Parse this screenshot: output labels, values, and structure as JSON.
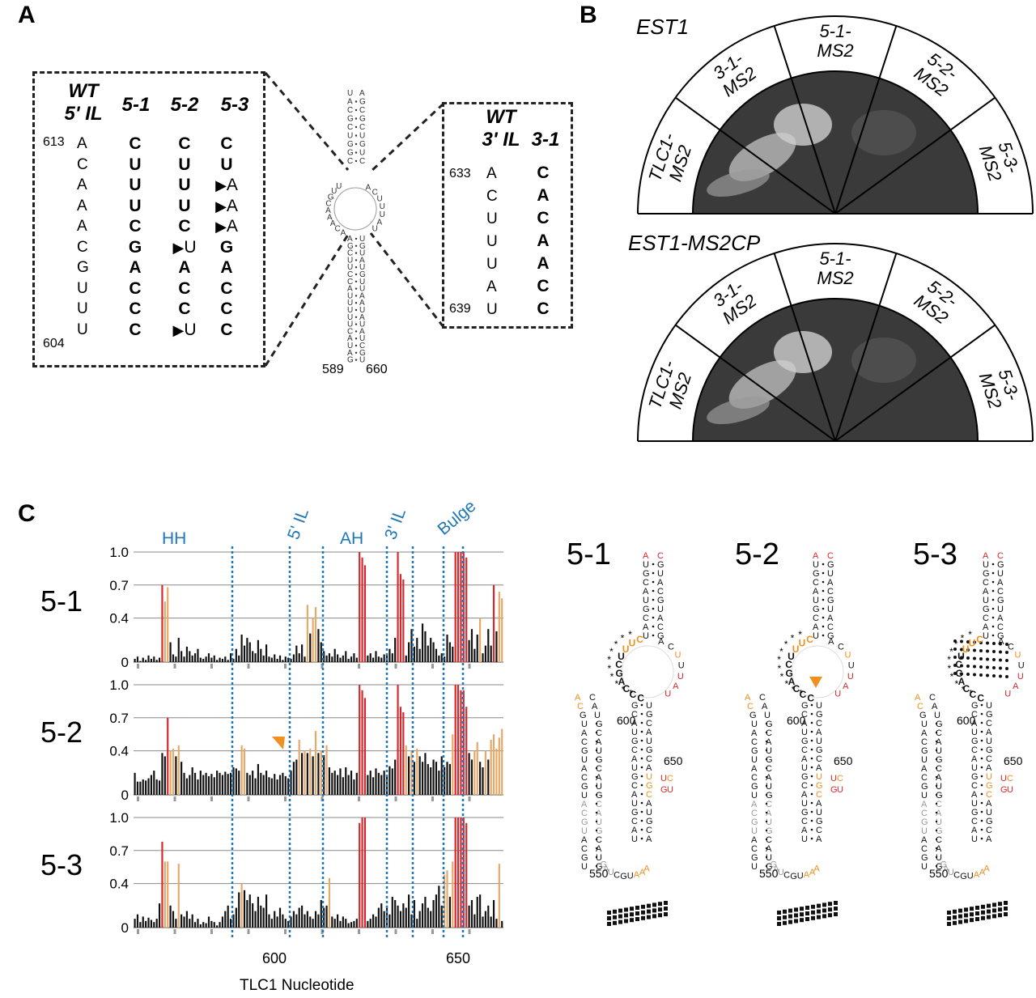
{
  "panels": {
    "a": "A",
    "b": "B",
    "c": "C"
  },
  "panel_a": {
    "left_box": {
      "wt_header": [
        "WT",
        "5' IL"
      ],
      "mutant_headers": [
        "5-1",
        "5-2",
        "5-3"
      ],
      "start_num": "613",
      "end_num": "604",
      "wt_seq": [
        "A",
        "C",
        "A",
        "A",
        "A",
        "C",
        "G",
        "U",
        "U",
        "U"
      ],
      "m51": [
        "C",
        "U",
        "U",
        "U",
        "C",
        "G",
        "A",
        "C",
        "C",
        "C"
      ],
      "m52": [
        "C",
        "U",
        "U",
        "U",
        "C",
        "U",
        "A",
        "C",
        "C",
        "U"
      ],
      "m53": [
        "C",
        "U",
        "A",
        "A",
        "A",
        "G",
        "A",
        "C",
        "C",
        "C"
      ],
      "m52_arrows": [
        5,
        9
      ],
      "m53_arrows": [
        2,
        3,
        4
      ]
    },
    "right_box": {
      "wt_header": [
        "WT",
        "3' IL"
      ],
      "mutant_header": "3-1",
      "start_num": "633",
      "end_num": "639",
      "wt_seq": [
        "A",
        "C",
        "U",
        "U",
        "U",
        "A",
        "U"
      ],
      "m31": [
        "C",
        "A",
        "C",
        "A",
        "A",
        "C",
        "C"
      ]
    },
    "hairpin": {
      "left_num": "589",
      "right_num": "660"
    }
  },
  "panel_b": {
    "plates": [
      {
        "title": "EST1",
        "sectors": [
          "TLC1-\nMS2",
          "3-1-\nMS2",
          "5-1-\nMS2",
          "5-2-\nMS2",
          "5-3-\nMS2"
        ]
      },
      {
        "title": "EST1-MS2CP",
        "sectors": [
          "TLC1-\nMS2",
          "3-1-\nMS2",
          "5-1-\nMS2",
          "5-2-\nMS2",
          "5-3-\nMS2"
        ]
      }
    ]
  },
  "panel_c": {
    "region_labels": [
      "HH",
      "5' IL",
      "AH",
      "3' IL",
      "Bulge"
    ],
    "xlabel": "TLC1 Nucleotide",
    "x_ticks": [
      "600",
      "650"
    ],
    "y_ticks": [
      "0",
      "0.4",
      "0.7",
      "1.0"
    ],
    "colors": {
      "low": "#111111",
      "mid": "#e8a868",
      "high": "#d8282d",
      "divider": "#1f78b4",
      "orange_mark": "#f09020"
    },
    "structure_titles": [
      "5-1",
      "5-2",
      "5-3"
    ],
    "structure_numbers": [
      "600",
      "650",
      "550"
    ]
  },
  "chart_data": [
    {
      "type": "bar",
      "title": "5-1",
      "xlabel": "TLC1 Nucleotide",
      "ylim": [
        0,
        1.0
      ],
      "values": [
        0.03,
        0.05,
        0.01,
        0.04,
        0.02,
        0.06,
        0.03,
        0.05,
        0.02,
        0.04,
        0.7,
        0.55,
        0.68,
        0.18,
        0.07,
        0.05,
        0.22,
        0.1,
        0.05,
        0.14,
        0.1,
        0.06,
        0.08,
        0.12,
        0.04,
        0.03,
        0.05,
        0.08,
        0.04,
        0.06,
        0.02,
        0.04,
        0.03,
        0.05,
        0.02,
        0.08,
        0.03,
        0.12,
        0.06,
        0.25,
        0.15,
        0.22,
        0.18,
        0.1,
        0.08,
        0.2,
        0.12,
        0.06,
        0.16,
        0.05,
        0.04,
        0.07,
        0.03,
        0.06,
        0.02,
        0.05,
        0.04,
        0.03,
        0.07,
        0.15,
        0.08,
        0.16,
        0.05,
        0.52,
        0.26,
        0.4,
        0.5,
        0.3,
        0.18,
        0.1,
        0.06,
        0.08,
        0.05,
        0.12,
        0.07,
        0.04,
        0.06,
        0.1,
        0.03,
        0.05,
        0.08,
        0.04,
        1.0,
        0.95,
        0.88,
        0.06,
        0.08,
        0.04,
        0.1,
        0.05,
        0.04,
        0.07,
        0.06,
        0.12,
        0.08,
        0.22,
        1.0,
        0.8,
        0.75,
        0.06,
        0.18,
        0.3,
        0.14,
        0.22,
        0.12,
        0.35,
        0.28,
        0.15,
        0.22,
        0.18,
        0.12,
        0.06,
        0.08,
        0.05,
        0.25,
        0.18,
        0.14,
        1.0,
        1.0,
        1.0,
        1.0,
        0.95,
        0.2,
        0.3,
        0.12,
        0.25,
        0.4,
        0.08,
        0.15,
        0.3,
        0.15,
        0.7,
        0.28,
        0.64,
        0.58
      ]
    },
    {
      "type": "bar",
      "title": "5-2",
      "xlabel": "TLC1 Nucleotide",
      "ylim": [
        0,
        1.0
      ],
      "values": [
        0.2,
        0.12,
        0.12,
        0.14,
        0.13,
        0.15,
        0.18,
        0.22,
        0.14,
        0.13,
        0.38,
        0.35,
        0.7,
        0.4,
        0.42,
        0.35,
        0.45,
        0.3,
        0.2,
        0.15,
        0.18,
        0.25,
        0.2,
        0.14,
        0.22,
        0.18,
        0.2,
        0.17,
        0.19,
        0.16,
        0.22,
        0.2,
        0.18,
        0.21,
        0.19,
        0.2,
        0.25,
        0.24,
        0.22,
        0.45,
        0.42,
        0.2,
        0.18,
        0.22,
        0.15,
        0.28,
        0.2,
        0.18,
        0.22,
        0.16,
        0.15,
        0.19,
        0.14,
        0.18,
        0.2,
        0.17,
        0.15,
        0.22,
        0.3,
        0.32,
        0.5,
        0.38,
        0.4,
        0.38,
        0.42,
        0.35,
        0.58,
        0.38,
        0.4,
        0.36,
        0.45,
        0.25,
        0.2,
        0.22,
        0.18,
        0.24,
        0.16,
        0.25,
        0.18,
        0.22,
        0.14,
        0.2,
        1.0,
        0.95,
        0.88,
        0.18,
        0.22,
        0.16,
        0.24,
        0.2,
        0.18,
        0.22,
        0.18,
        0.26,
        0.24,
        0.32,
        1.0,
        0.8,
        0.75,
        0.45,
        0.35,
        0.4,
        0.3,
        0.42,
        0.35,
        0.3,
        0.38,
        0.28,
        0.25,
        0.32,
        0.3,
        0.22,
        0.35,
        0.25,
        0.3,
        0.28,
        0.55,
        1.0,
        1.0,
        0.95,
        0.95,
        0.8,
        0.38,
        0.32,
        0.4,
        0.48,
        0.3,
        0.25,
        0.4,
        0.32,
        0.5,
        0.55,
        0.42,
        0.52,
        0.6
      ]
    },
    {
      "type": "bar",
      "title": "5-3",
      "xlabel": "TLC1 Nucleotide",
      "ylim": [
        0,
        1.0
      ],
      "values": [
        0.08,
        0.12,
        0.05,
        0.1,
        0.06,
        0.09,
        0.07,
        0.05,
        0.08,
        0.22,
        0.78,
        0.6,
        0.6,
        0.2,
        0.15,
        0.08,
        0.58,
        0.12,
        0.1,
        0.15,
        0.08,
        0.12,
        0.05,
        0.08,
        0.03,
        0.05,
        0.04,
        0.1,
        0.06,
        0.05,
        0.02,
        0.05,
        0.1,
        0.15,
        0.2,
        0.08,
        0.12,
        0.18,
        0.32,
        0.4,
        0.34,
        0.25,
        0.3,
        0.22,
        0.15,
        0.28,
        0.2,
        0.18,
        0.3,
        0.12,
        0.08,
        0.15,
        0.1,
        0.18,
        0.12,
        0.08,
        0.06,
        0.1,
        0.15,
        0.12,
        0.18,
        0.2,
        0.12,
        0.15,
        0.1,
        0.08,
        0.15,
        0.12,
        0.25,
        0.18,
        0.2,
        0.45,
        0.1,
        0.08,
        0.12,
        0.06,
        0.1,
        0.08,
        0.04,
        0.05,
        0.06,
        0.08,
        0.95,
        1.0,
        1.0,
        0.06,
        0.08,
        0.12,
        0.1,
        0.18,
        0.22,
        0.15,
        0.2,
        0.12,
        0.28,
        0.25,
        0.2,
        0.15,
        0.22,
        0.18,
        0.3,
        0.12,
        0.25,
        0.08,
        0.15,
        0.22,
        0.28,
        0.18,
        0.15,
        0.25,
        0.3,
        0.38,
        0.2,
        0.48,
        0.52,
        0.28,
        0.6,
        1.0,
        1.0,
        1.0,
        1.0,
        0.95,
        0.2,
        0.25,
        0.12,
        0.28,
        0.3,
        0.1,
        0.15,
        0.2,
        0.1,
        0.25,
        0.08,
        0.58,
        0.06
      ]
    }
  ]
}
